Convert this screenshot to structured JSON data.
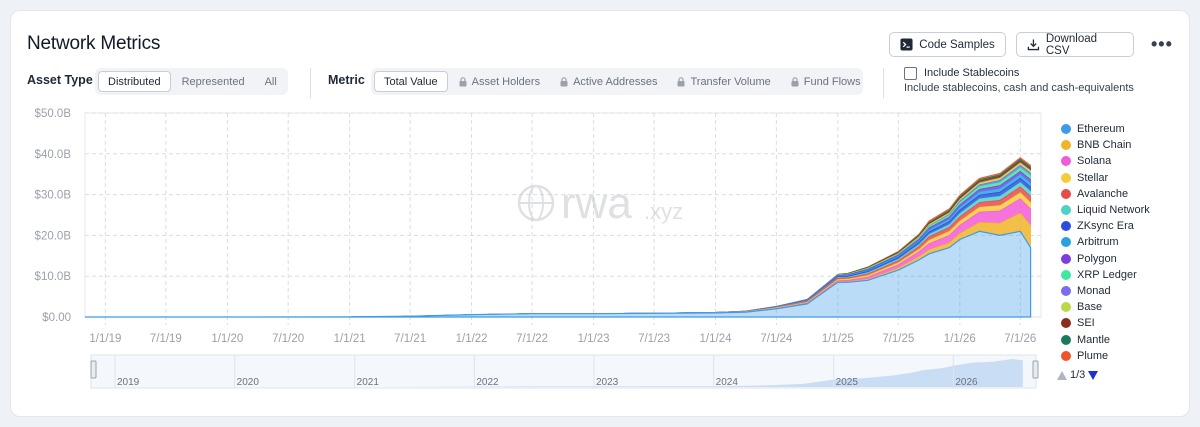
{
  "header": {
    "title": "Network Metrics",
    "code_samples_label": "Code Samples",
    "download_csv_label": "Download CSV",
    "more_label": "•••"
  },
  "asset_type": {
    "label": "Asset Type",
    "options": [
      "Distributed",
      "Represented",
      "All"
    ],
    "selected": "Distributed"
  },
  "metric": {
    "label": "Metric",
    "options": [
      "Total Value",
      "Asset Holders",
      "Active Addresses",
      "Transfer Volume",
      "Fund Flows"
    ],
    "selected": "Total Value"
  },
  "stablecoins": {
    "label": "Include Stablecoins",
    "description": "Include stablecoins, cash and cash-equivalents",
    "checked": false
  },
  "watermark": {
    "brand": "rwa",
    "suffix": ".xyz"
  },
  "pager": {
    "text": "1/3"
  },
  "navigator_years": [
    "2019",
    "2020",
    "2021",
    "2022",
    "2023",
    "2024",
    "2025",
    "2026"
  ],
  "chart_data": {
    "type": "area",
    "stacked": true,
    "ylim": [
      0,
      50
    ],
    "y_ticks": [
      {
        "value": 0,
        "label": "$0.00"
      },
      {
        "value": 10,
        "label": "$10.0B"
      },
      {
        "value": 20,
        "label": "$20.0B"
      },
      {
        "value": 30,
        "label": "$30.0B"
      },
      {
        "value": 40,
        "label": "$40.0B"
      },
      {
        "value": 50,
        "label": "$50.0B"
      }
    ],
    "x_ticks": [
      "1/1/19",
      "7/1/19",
      "1/1/20",
      "7/1/20",
      "1/1/21",
      "7/1/21",
      "1/1/22",
      "7/1/22",
      "1/1/23",
      "7/1/23",
      "1/1/24",
      "7/1/24",
      "1/1/25",
      "7/1/25",
      "1/1/26",
      "7/1/26"
    ],
    "x": [
      "2018-11",
      "2019-01",
      "2020-01",
      "2021-01",
      "2021-07",
      "2022-01",
      "2022-07",
      "2023-01",
      "2023-07",
      "2024-01",
      "2024-04",
      "2024-07",
      "2024-10",
      "2025-01",
      "2025-02",
      "2025-04",
      "2025-07",
      "2025-09",
      "2025-10",
      "2025-12",
      "2026-01",
      "2026-03",
      "2026-05",
      "2026-07",
      "2026-08"
    ],
    "legend_position": "right",
    "grid": true,
    "series": [
      {
        "name": "Ethereum",
        "color": "#3d9be9",
        "values": [
          0,
          0,
          0,
          0.05,
          0.2,
          0.6,
          0.8,
          0.8,
          0.9,
          1.0,
          1.2,
          2.0,
          3.2,
          8.5,
          8.5,
          9.0,
          11.5,
          14.0,
          15.5,
          17.0,
          19.0,
          21.0,
          20.0,
          21.0,
          17.0
        ]
      },
      {
        "name": "BNB Chain",
        "color": "#f0b429",
        "values": [
          0,
          0,
          0,
          0,
          0,
          0,
          0,
          0,
          0,
          0,
          0,
          0.05,
          0.1,
          0.2,
          0.2,
          0.3,
          0.5,
          0.8,
          1.0,
          1.2,
          1.5,
          2.2,
          3.0,
          4.5,
          5.5
        ]
      },
      {
        "name": "Solana",
        "color": "#f25bd6",
        "values": [
          0,
          0,
          0,
          0,
          0,
          0,
          0,
          0,
          0,
          0,
          0.02,
          0.05,
          0.1,
          0.2,
          0.3,
          0.5,
          0.8,
          1.2,
          1.5,
          1.8,
          2.0,
          2.5,
          3.0,
          3.5,
          4.0
        ]
      },
      {
        "name": "Stellar",
        "color": "#f6cb3a",
        "values": [
          0,
          0,
          0,
          0,
          0,
          0.02,
          0.03,
          0.05,
          0.05,
          0.08,
          0.1,
          0.15,
          0.2,
          0.3,
          0.3,
          0.4,
          0.5,
          0.6,
          0.8,
          1.0,
          1.0,
          1.2,
          1.3,
          1.5,
          1.6
        ]
      },
      {
        "name": "Avalanche",
        "color": "#e94a4a",
        "values": [
          0,
          0,
          0,
          0,
          0,
          0,
          0,
          0,
          0,
          0.02,
          0.05,
          0.1,
          0.2,
          0.3,
          0.3,
          0.4,
          0.5,
          0.7,
          0.9,
          1.0,
          1.1,
          1.2,
          1.3,
          1.4,
          1.5
        ]
      },
      {
        "name": "Liquid Network",
        "color": "#4fd1c5",
        "values": [
          0,
          0,
          0,
          0,
          0,
          0,
          0,
          0,
          0,
          0,
          0.01,
          0.05,
          0.1,
          0.2,
          0.2,
          0.3,
          0.4,
          0.5,
          0.6,
          0.7,
          0.8,
          0.9,
          1.0,
          1.1,
          1.2
        ]
      },
      {
        "name": "ZKsync Era",
        "color": "#2b4de0",
        "values": [
          0,
          0,
          0,
          0,
          0,
          0,
          0,
          0,
          0,
          0,
          0,
          0.05,
          0.1,
          0.2,
          0.2,
          0.3,
          0.4,
          0.5,
          0.6,
          0.7,
          0.8,
          0.9,
          1.0,
          1.0,
          1.1
        ]
      },
      {
        "name": "Arbitrum",
        "color": "#29a3e0",
        "values": [
          0,
          0,
          0,
          0,
          0,
          0,
          0,
          0,
          0,
          0,
          0.02,
          0.05,
          0.1,
          0.15,
          0.2,
          0.25,
          0.3,
          0.4,
          0.5,
          0.6,
          0.7,
          0.8,
          0.9,
          1.0,
          1.0
        ]
      },
      {
        "name": "Polygon",
        "color": "#7c3ee0",
        "values": [
          0,
          0,
          0,
          0,
          0,
          0,
          0,
          0.01,
          0.02,
          0.05,
          0.08,
          0.1,
          0.15,
          0.2,
          0.2,
          0.25,
          0.3,
          0.4,
          0.45,
          0.5,
          0.6,
          0.6,
          0.7,
          0.7,
          0.8
        ]
      },
      {
        "name": "XRP Ledger",
        "color": "#3ee8a0",
        "values": [
          0,
          0,
          0,
          0,
          0,
          0,
          0,
          0,
          0,
          0,
          0,
          0,
          0.02,
          0.05,
          0.1,
          0.15,
          0.2,
          0.3,
          0.4,
          0.5,
          0.6,
          0.7,
          0.8,
          0.9,
          1.0
        ]
      },
      {
        "name": "Monad",
        "color": "#7a6cf0",
        "values": [
          0,
          0,
          0,
          0,
          0,
          0,
          0,
          0,
          0,
          0,
          0,
          0,
          0,
          0,
          0,
          0,
          0,
          0,
          0.1,
          0.2,
          0.3,
          0.4,
          0.5,
          0.6,
          0.6
        ]
      },
      {
        "name": "Base",
        "color": "#b9d84c",
        "values": [
          0,
          0,
          0,
          0,
          0,
          0,
          0,
          0,
          0,
          0,
          0,
          0.02,
          0.05,
          0.1,
          0.1,
          0.15,
          0.2,
          0.3,
          0.35,
          0.4,
          0.45,
          0.5,
          0.55,
          0.6,
          0.6
        ]
      },
      {
        "name": "SEI",
        "color": "#8b2c1c",
        "values": [
          0,
          0,
          0,
          0,
          0,
          0,
          0,
          0,
          0,
          0,
          0,
          0,
          0,
          0.02,
          0.05,
          0.1,
          0.15,
          0.2,
          0.25,
          0.3,
          0.35,
          0.4,
          0.45,
          0.5,
          0.5
        ]
      },
      {
        "name": "Mantle",
        "color": "#1b7a5a",
        "values": [
          0,
          0,
          0,
          0,
          0,
          0,
          0,
          0,
          0,
          0,
          0,
          0.01,
          0.03,
          0.05,
          0.08,
          0.1,
          0.15,
          0.2,
          0.25,
          0.3,
          0.3,
          0.35,
          0.35,
          0.4,
          0.4
        ]
      },
      {
        "name": "Plume",
        "color": "#f0542a",
        "values": [
          0,
          0,
          0,
          0,
          0,
          0,
          0,
          0,
          0,
          0,
          0,
          0,
          0,
          0.02,
          0.05,
          0.1,
          0.2,
          0.3,
          0.4,
          0.4,
          0.4,
          0.4,
          0.4,
          0.4,
          0.4
        ]
      }
    ]
  }
}
